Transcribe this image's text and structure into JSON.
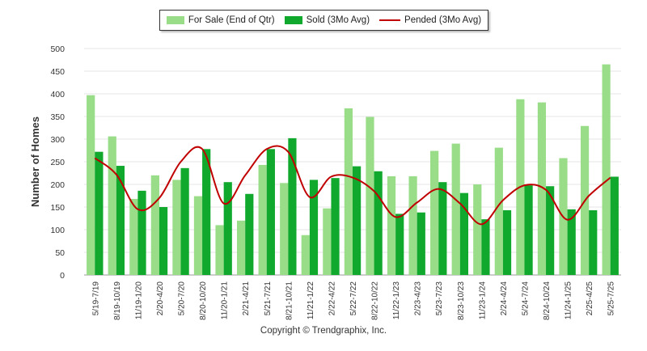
{
  "chart_data": {
    "type": "bar",
    "ylabel": "Number of Homes",
    "xlabel": "",
    "ylim": [
      0,
      500
    ],
    "yticks": [
      0,
      50,
      100,
      150,
      200,
      250,
      300,
      350,
      400,
      450,
      500
    ],
    "grid": true,
    "legend_position": "top-center",
    "categories": [
      "5/19-7/19",
      "8/19-10/19",
      "11/19-1/20",
      "2/20-4/20",
      "5/20-7/20",
      "8/20-10/20",
      "11/20-1/21",
      "2/21-4/21",
      "5/21-7/21",
      "8/21-10/21",
      "11/21-1/22",
      "2/22-4/22",
      "5/22-7/22",
      "8/22-10/22",
      "11/22-1/23",
      "2/23-4/23",
      "5/23-7/23",
      "8/23-10/23",
      "11/23-1/24",
      "2/24-4/24",
      "5/24-7/24",
      "8/24-10/24",
      "11/24-1/25",
      "2/25-4/25",
      "5/25-7/25"
    ],
    "series": [
      {
        "name": "For Sale (End of Qtr)",
        "kind": "bar",
        "color": "#99dd88",
        "values": [
          397,
          306,
          168,
          220,
          210,
          174,
          110,
          120,
          243,
          203,
          88,
          147,
          368,
          349,
          218,
          218,
          274,
          290,
          200,
          281,
          388,
          381,
          258,
          329,
          465
        ]
      },
      {
        "name": "Sold (3Mo Avg)",
        "kind": "bar",
        "color": "#11a82e",
        "values": [
          272,
          241,
          186,
          150,
          236,
          278,
          205,
          179,
          278,
          302,
          210,
          214,
          240,
          229,
          135,
          138,
          205,
          181,
          123,
          143,
          198,
          196,
          145,
          143,
          217
        ]
      },
      {
        "name": "Pended (3Mo Avg)",
        "kind": "line",
        "color": "#c00000",
        "values": [
          258,
          222,
          145,
          170,
          250,
          278,
          158,
          220,
          278,
          272,
          172,
          217,
          215,
          185,
          128,
          160,
          190,
          158,
          112,
          165,
          198,
          188,
          122,
          175,
          215
        ]
      }
    ]
  },
  "footer": {
    "copyright": "Copyright © Trendgraphix, Inc."
  }
}
